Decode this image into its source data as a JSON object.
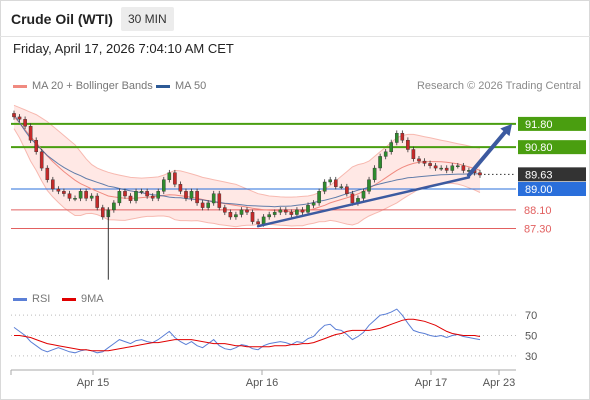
{
  "header": {
    "title": "Crude Oil (WTI)",
    "timeframe": "30 MIN"
  },
  "datetime": "Friday, April 17, 2026 7:04:10 AM CET",
  "legend_main": [
    {
      "label": "MA 20 + Bollinger Bands",
      "color": "#f08a80"
    },
    {
      "label": "MA 50",
      "color": "#2d5a96"
    }
  ],
  "credit": "Research © 2026 Trading Central",
  "legend_rsi": [
    {
      "label": "RSI",
      "color": "#5b7fd6"
    },
    {
      "label": "9MA",
      "color": "#e00000"
    }
  ],
  "colors": {
    "up": "#2e8b2e",
    "down": "#c42a2a",
    "resistance": "#4a9e10",
    "pivot": "#2a6fdb",
    "support": "#e26060",
    "last": "#333333",
    "trend": "#3c5aa0"
  },
  "chart_data": {
    "type": "candlestick",
    "price_axis": {
      "ylim": [
        85.0,
        93.0
      ]
    },
    "x_ticks": [
      "Apr 15",
      "Apr 16",
      "Apr 17",
      "Apr 23"
    ],
    "levels": [
      {
        "value": 91.8,
        "label": "91.80",
        "kind": "resistance"
      },
      {
        "value": 90.8,
        "label": "90.80",
        "kind": "resistance"
      },
      {
        "value": 89.63,
        "label": "89.63",
        "kind": "last"
      },
      {
        "value": 89.0,
        "label": "89.00",
        "kind": "pivot"
      },
      {
        "value": 88.1,
        "label": "88.10",
        "kind": "support"
      },
      {
        "value": 87.3,
        "label": "87.30",
        "kind": "support"
      }
    ],
    "trendline": {
      "from": [
        44,
        87.4
      ],
      "to": [
        82,
        89.5
      ]
    },
    "forecast_arrow": {
      "from": [
        82,
        89.6
      ],
      "to": [
        90,
        91.8
      ]
    },
    "close": [
      92.1,
      92.0,
      91.7,
      91.1,
      90.6,
      89.9,
      89.4,
      89.0,
      88.9,
      88.8,
      88.6,
      88.6,
      88.9,
      88.6,
      88.7,
      88.2,
      87.8,
      88.1,
      88.4,
      88.9,
      88.7,
      88.5,
      88.9,
      88.9,
      88.7,
      88.6,
      88.9,
      89.4,
      89.7,
      89.2,
      88.9,
      88.6,
      88.9,
      88.4,
      88.2,
      88.4,
      88.8,
      88.2,
      88.0,
      87.8,
      87.9,
      88.1,
      88.0,
      87.6,
      87.5,
      87.8,
      87.9,
      88.0,
      88.1,
      88.0,
      87.9,
      88.1,
      88.0,
      88.3,
      88.4,
      88.9,
      89.3,
      89.4,
      89.1,
      89.1,
      88.8,
      88.4,
      88.6,
      88.9,
      89.4,
      89.9,
      90.4,
      90.6,
      91.0,
      91.4,
      91.1,
      90.7,
      90.3,
      90.2,
      90.1,
      90.0,
      89.9,
      89.9,
      89.8,
      90.0,
      90.0,
      89.8,
      89.8,
      89.7,
      89.6
    ],
    "ma50": [
      92.2,
      91.85,
      91.5,
      91.17,
      90.93,
      90.68,
      90.44,
      90.26,
      90.08,
      89.93,
      89.79,
      89.67,
      89.57,
      89.45,
      89.37,
      89.29,
      89.21,
      89.12,
      89.08,
      89.02,
      88.97,
      88.92,
      88.88,
      88.84,
      88.8,
      88.75,
      88.73,
      88.7,
      88.65,
      88.63,
      88.62,
      88.59,
      88.56,
      88.55,
      88.53,
      88.49,
      88.46,
      88.42,
      88.39,
      88.37,
      88.35,
      88.32,
      88.29,
      88.28,
      88.27,
      88.26,
      88.25,
      88.24,
      88.26,
      88.26,
      88.27,
      88.3,
      88.33,
      88.36,
      88.42,
      88.47,
      88.52,
      88.58,
      88.64,
      88.72,
      88.8,
      88.87,
      88.95,
      89.01,
      89.08,
      89.16,
      89.22,
      89.28,
      89.33,
      89.39,
      89.43,
      89.48,
      89.5,
      89.53,
      89.55,
      89.57,
      89.59,
      89.61,
      89.62,
      89.63,
      89.64,
      89.64,
      89.65,
      89.65,
      89.66
    ],
    "ma20": [
      92.1,
      91.85,
      91.55,
      91.25,
      91.0,
      90.7,
      90.42,
      90.18,
      89.96,
      89.75,
      89.56,
      89.38,
      89.23,
      89.12,
      89.0,
      88.9,
      88.8,
      88.7,
      88.66,
      88.63,
      88.6,
      88.6,
      88.61,
      88.63,
      88.65,
      88.66,
      88.68,
      88.72,
      88.75,
      88.74,
      88.71,
      88.68,
      88.64,
      88.61,
      88.55,
      88.5,
      88.46,
      88.41,
      88.37,
      88.33,
      88.29,
      88.26,
      88.22,
      88.17,
      88.14,
      88.11,
      88.09,
      88.07,
      88.05,
      88.04,
      88.03,
      88.04,
      88.05,
      88.09,
      88.14,
      88.22,
      88.3,
      88.4,
      88.48,
      88.55,
      88.62,
      88.7,
      88.79,
      88.9,
      89.02,
      89.17,
      89.32,
      89.48,
      89.64,
      89.8,
      89.93,
      90.03,
      90.1,
      90.15,
      90.17,
      90.18,
      90.18,
      90.17,
      90.15,
      90.12,
      90.08,
      90.02,
      89.95,
      89.88,
      89.8
    ],
    "bb_upper": [
      92.6,
      92.5,
      92.4,
      92.3,
      92.2,
      92.05,
      91.9,
      91.7,
      91.5,
      91.3,
      91.1,
      90.9,
      90.6,
      90.3,
      90.05,
      89.9,
      89.8,
      89.72,
      89.65,
      89.6,
      89.55,
      89.5,
      89.48,
      89.47,
      89.48,
      89.5,
      89.52,
      89.6,
      89.7,
      89.8,
      89.78,
      89.72,
      89.65,
      89.58,
      89.5,
      89.45,
      89.4,
      89.35,
      89.3,
      89.25,
      89.2,
      89.1,
      89.0,
      88.9,
      88.8,
      88.75,
      88.7,
      88.68,
      88.66,
      88.65,
      88.65,
      88.66,
      88.68,
      88.7,
      88.75,
      88.85,
      89.0,
      89.15,
      89.35,
      89.55,
      89.75,
      89.95,
      90.05,
      90.1,
      90.2,
      90.4,
      90.6,
      90.8,
      91.0,
      91.2,
      91.3,
      91.35,
      91.35,
      91.3,
      91.25,
      91.2,
      91.15,
      91.1,
      91.05,
      91.0,
      90.95,
      90.9,
      90.85,
      90.8,
      90.75
    ],
    "bb_lower": [
      91.6,
      91.2,
      90.7,
      90.2,
      89.8,
      89.35,
      88.94,
      88.66,
      88.42,
      88.2,
      88.02,
      87.86,
      87.86,
      87.94,
      87.95,
      87.9,
      87.8,
      87.68,
      87.67,
      87.66,
      87.65,
      87.7,
      87.74,
      87.79,
      87.82,
      87.82,
      87.84,
      87.84,
      87.8,
      87.68,
      87.64,
      87.64,
      87.63,
      87.64,
      87.6,
      87.55,
      87.52,
      87.47,
      87.44,
      87.41,
      87.38,
      87.42,
      87.44,
      87.44,
      87.48,
      87.47,
      87.48,
      87.46,
      87.44,
      87.43,
      87.41,
      87.42,
      87.42,
      87.48,
      87.53,
      87.59,
      87.6,
      87.65,
      87.61,
      87.55,
      87.49,
      87.45,
      87.53,
      87.7,
      87.84,
      87.94,
      88.04,
      88.16,
      88.28,
      88.4,
      88.56,
      88.71,
      88.85,
      89.0,
      89.09,
      89.16,
      89.21,
      89.24,
      89.25,
      89.24,
      89.21,
      89.14,
      89.05,
      88.96,
      88.85
    ],
    "rsi": {
      "ylim": [
        20,
        80
      ],
      "ticks": [
        70,
        50,
        30
      ],
      "rsi": [
        58,
        54,
        50,
        44,
        40,
        36,
        34,
        36,
        38,
        36,
        34,
        33,
        35,
        36,
        35,
        33,
        34,
        38,
        42,
        46,
        44,
        42,
        45,
        46,
        44,
        43,
        46,
        50,
        54,
        48,
        44,
        41,
        44,
        40,
        38,
        42,
        46,
        40,
        37,
        36,
        38,
        41,
        40,
        37,
        36,
        40,
        42,
        43,
        44,
        43,
        41,
        44,
        43,
        47,
        49,
        55,
        60,
        61,
        56,
        55,
        51,
        46,
        49,
        53,
        60,
        65,
        70,
        71,
        73,
        76,
        70,
        62,
        55,
        53,
        52,
        50,
        49,
        50,
        48,
        50,
        51,
        49,
        48,
        47,
        46
      ],
      "ma9": [
        50,
        50,
        49,
        48,
        46,
        44,
        42,
        41,
        40,
        39,
        38,
        37,
        36,
        36,
        35,
        35,
        35,
        35,
        36,
        37,
        38,
        39,
        40,
        41,
        42,
        43,
        43,
        44,
        45,
        46,
        46,
        46,
        46,
        45,
        44,
        43,
        42,
        42,
        42,
        41,
        40,
        40,
        39,
        39,
        39,
        39,
        39,
        40,
        40,
        40,
        41,
        41,
        42,
        42,
        43,
        45,
        47,
        49,
        51,
        52,
        54,
        55,
        55,
        55,
        55,
        56,
        57,
        59,
        61,
        63,
        65,
        66,
        66,
        65,
        64,
        62,
        60,
        57,
        54,
        52,
        51,
        50,
        50,
        50,
        49
      ]
    }
  }
}
